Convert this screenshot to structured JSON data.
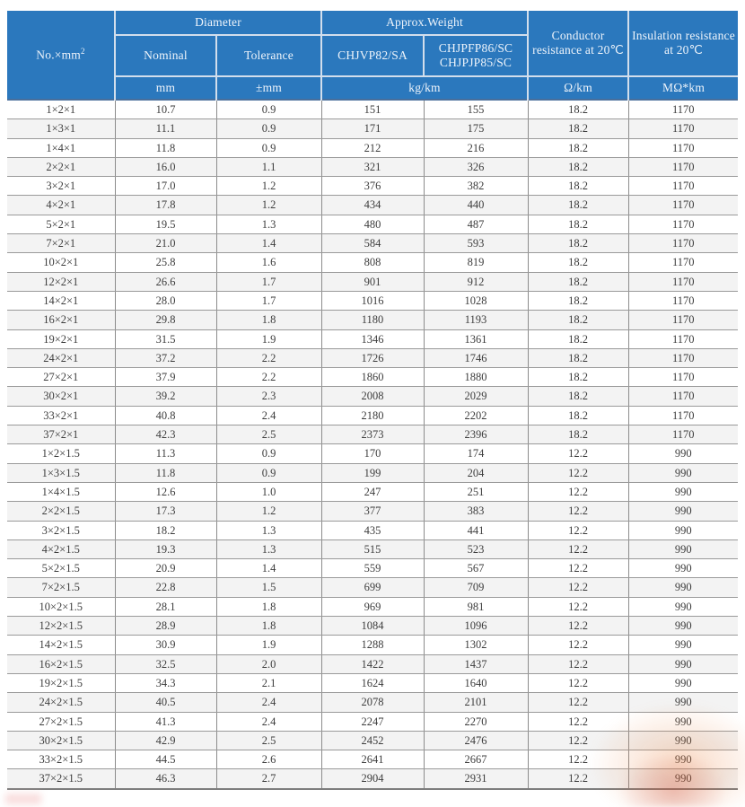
{
  "colors": {
    "header_bg": "#2b78bd",
    "header_text": "#eef4fb",
    "header_divider": "#d2deec",
    "row_alt_bg": "#f3f3f3",
    "grid_line": "#9a9a9a",
    "data_text": "#3d3d3d",
    "watermark_orange": "#e9823e"
  },
  "table": {
    "header": {
      "no_mm2_base": "No.×mm",
      "no_mm2_sup": "2",
      "diameter": "Diameter",
      "approx_weight": "Approx.Weight",
      "nominal": "Nominal",
      "tolerance": "Tolerance",
      "model_a": "CHJVP82/SA",
      "model_b_line1": "CHJPFP86/SC",
      "model_b_line2": "CHJPJP85/SC",
      "conductor_resistance": "Conductor resistance at 20℃",
      "insulation_resistance": "Insulation resistance at 20℃"
    },
    "units": {
      "mm": "mm",
      "tolerance_mm": "±mm",
      "weight": "kg/km",
      "conductor": "Ω/km",
      "insulation": "MΩ*km"
    },
    "column_names": [
      "spec-no-mm2",
      "diameter-nominal",
      "diameter-tolerance",
      "weight-chjvp82-sa",
      "weight-chjpfp86-sc",
      "conductor-resistance",
      "insulation-resistance"
    ],
    "rows": [
      [
        "1×2×1",
        "10.7",
        "0.9",
        "151",
        "155",
        "18.2",
        "1170"
      ],
      [
        "1×3×1",
        "11.1",
        "0.9",
        "171",
        "175",
        "18.2",
        "1170"
      ],
      [
        "1×4×1",
        "11.8",
        "0.9",
        "212",
        "216",
        "18.2",
        "1170"
      ],
      [
        "2×2×1",
        "16.0",
        "1.1",
        "321",
        "326",
        "18.2",
        "1170"
      ],
      [
        "3×2×1",
        "17.0",
        "1.2",
        "376",
        "382",
        "18.2",
        "1170"
      ],
      [
        "4×2×1",
        "17.8",
        "1.2",
        "434",
        "440",
        "18.2",
        "1170"
      ],
      [
        "5×2×1",
        "19.5",
        "1.3",
        "480",
        "487",
        "18.2",
        "1170"
      ],
      [
        "7×2×1",
        "21.0",
        "1.4",
        "584",
        "593",
        "18.2",
        "1170"
      ],
      [
        "10×2×1",
        "25.8",
        "1.6",
        "808",
        "819",
        "18.2",
        "1170"
      ],
      [
        "12×2×1",
        "26.6",
        "1.7",
        "901",
        "912",
        "18.2",
        "1170"
      ],
      [
        "14×2×1",
        "28.0",
        "1.7",
        "1016",
        "1028",
        "18.2",
        "1170"
      ],
      [
        "16×2×1",
        "29.8",
        "1.8",
        "1180",
        "1193",
        "18.2",
        "1170"
      ],
      [
        "19×2×1",
        "31.5",
        "1.9",
        "1346",
        "1361",
        "18.2",
        "1170"
      ],
      [
        "24×2×1",
        "37.2",
        "2.2",
        "1726",
        "1746",
        "18.2",
        "1170"
      ],
      [
        "27×2×1",
        "37.9",
        "2.2",
        "1860",
        "1880",
        "18.2",
        "1170"
      ],
      [
        "30×2×1",
        "39.2",
        "2.3",
        "2008",
        "2029",
        "18.2",
        "1170"
      ],
      [
        "33×2×1",
        "40.8",
        "2.4",
        "2180",
        "2202",
        "18.2",
        "1170"
      ],
      [
        "37×2×1",
        "42.3",
        "2.5",
        "2373",
        "2396",
        "18.2",
        "1170"
      ],
      [
        "1×2×1.5",
        "11.3",
        "0.9",
        "170",
        "174",
        "12.2",
        "990"
      ],
      [
        "1×3×1.5",
        "11.8",
        "0.9",
        "199",
        "204",
        "12.2",
        "990"
      ],
      [
        "1×4×1.5",
        "12.6",
        "1.0",
        "247",
        "251",
        "12.2",
        "990"
      ],
      [
        "2×2×1.5",
        "17.3",
        "1.2",
        "377",
        "383",
        "12.2",
        "990"
      ],
      [
        "3×2×1.5",
        "18.2",
        "1.3",
        "435",
        "441",
        "12.2",
        "990"
      ],
      [
        "4×2×1.5",
        "19.3",
        "1.3",
        "515",
        "523",
        "12.2",
        "990"
      ],
      [
        "5×2×1.5",
        "20.9",
        "1.4",
        "559",
        "567",
        "12.2",
        "990"
      ],
      [
        "7×2×1.5",
        "22.8",
        "1.5",
        "699",
        "709",
        "12.2",
        "990"
      ],
      [
        "10×2×1.5",
        "28.1",
        "1.8",
        "969",
        "981",
        "12.2",
        "990"
      ],
      [
        "12×2×1.5",
        "28.9",
        "1.8",
        "1084",
        "1096",
        "12.2",
        "990"
      ],
      [
        "14×2×1.5",
        "30.9",
        "1.9",
        "1288",
        "1302",
        "12.2",
        "990"
      ],
      [
        "16×2×1.5",
        "32.5",
        "2.0",
        "1422",
        "1437",
        "12.2",
        "990"
      ],
      [
        "19×2×1.5",
        "34.3",
        "2.1",
        "1624",
        "1640",
        "12.2",
        "990"
      ],
      [
        "24×2×1.5",
        "40.5",
        "2.4",
        "2078",
        "2101",
        "12.2",
        "990"
      ],
      [
        "27×2×1.5",
        "41.3",
        "2.4",
        "2247",
        "2270",
        "12.2",
        "990"
      ],
      [
        "30×2×1.5",
        "42.9",
        "2.5",
        "2452",
        "2476",
        "12.2",
        "990"
      ],
      [
        "33×2×1.5",
        "44.5",
        "2.6",
        "2641",
        "2667",
        "12.2",
        "990"
      ],
      [
        "37×2×1.5",
        "46.3",
        "2.7",
        "2904",
        "2931",
        "12.2",
        "990"
      ]
    ]
  }
}
